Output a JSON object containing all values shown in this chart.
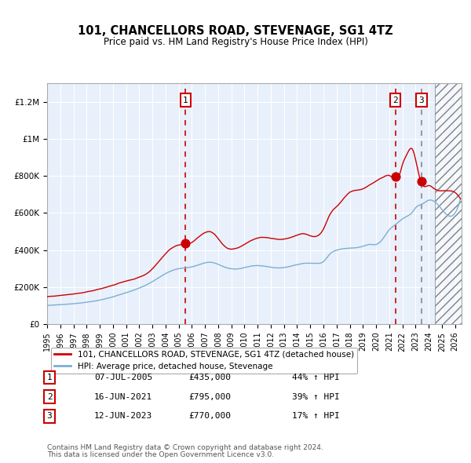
{
  "title": "101, CHANCELLORS ROAD, STEVENAGE, SG1 4TZ",
  "subtitle": "Price paid vs. HM Land Registry's House Price Index (HPI)",
  "legend_label_red": "101, CHANCELLORS ROAD, STEVENAGE, SG1 4TZ (detached house)",
  "legend_label_blue": "HPI: Average price, detached house, Stevenage",
  "footer1": "Contains HM Land Registry data © Crown copyright and database right 2024.",
  "footer2": "This data is licensed under the Open Government Licence v3.0.",
  "transactions": [
    {
      "num": 1,
      "date": "07-JUL-2005",
      "price": 435000,
      "pct": "44%",
      "dir": "↑",
      "year": 2005.52
    },
    {
      "num": 2,
      "date": "16-JUN-2021",
      "price": 795000,
      "pct": "39%",
      "dir": "↑",
      "year": 2021.46
    },
    {
      "num": 3,
      "date": "12-JUN-2023",
      "price": 770000,
      "pct": "17%",
      "dir": "↑",
      "year": 2023.46
    }
  ],
  "ylim": [
    0,
    1300000
  ],
  "xlim_start": 1995.0,
  "xlim_end": 2026.5,
  "bg_color": "#dce8f5",
  "plot_bg": "#e8f0fb",
  "red_color": "#cc0000",
  "blue_color": "#7bafd4",
  "hatch_start": 2024.5
}
